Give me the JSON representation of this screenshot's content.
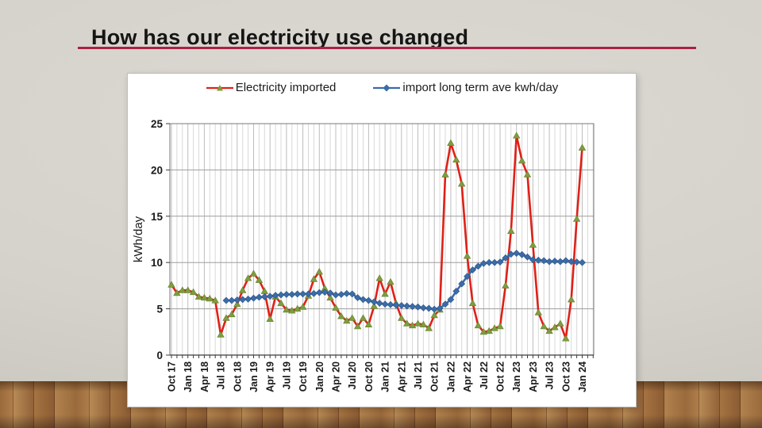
{
  "slide": {
    "title": "How has our electricity use changed",
    "accent_color": "#a82244"
  },
  "chart_data": {
    "type": "line",
    "title": "",
    "xlabel": "",
    "ylabel": "kWh/day",
    "ylim": [
      0,
      25
    ],
    "y_ticks": [
      0,
      5,
      10,
      15,
      20,
      25
    ],
    "grid": "both",
    "legend_position": "top",
    "x_start": "Oct 2017",
    "x_end": "Jan 2024",
    "x_interval": "monthly",
    "x_tick_labels": [
      "Oct 17",
      "Jan 18",
      "Apr 18",
      "Jul 18",
      "Oct 18",
      "Jan 19",
      "Apr 19",
      "Jul 19",
      "Oct 19",
      "Jan 20",
      "Apr 20",
      "Jul 20",
      "Oct 20",
      "Jan 21",
      "Apr 21",
      "Jul 21",
      "Oct 21",
      "Jan 22",
      "Apr 22",
      "Jul 22",
      "Oct 22",
      "Jan 23",
      "Apr 23",
      "Jul 23",
      "Oct 23",
      "Jan 24"
    ],
    "x_tick_label_every_n_months": 3,
    "series": [
      {
        "name": "Electricity imported",
        "color": "#e02017",
        "marker": "triangle",
        "marker_color": "#7e9d3f",
        "values": [
          7.6,
          6.7,
          7.0,
          7.0,
          6.8,
          6.3,
          6.2,
          6.1,
          5.9,
          2.2,
          4.0,
          4.4,
          5.5,
          7.0,
          8.3,
          8.8,
          8.1,
          6.9,
          3.9,
          6.3,
          5.6,
          4.9,
          4.8,
          5.0,
          5.2,
          6.4,
          8.2,
          9.0,
          7.2,
          6.2,
          5.1,
          4.2,
          3.7,
          4.0,
          3.1,
          4.0,
          3.3,
          5.3,
          8.3,
          6.6,
          7.9,
          5.6,
          4.0,
          3.4,
          3.2,
          3.4,
          3.3,
          2.9,
          4.3,
          4.9,
          19.5,
          22.9,
          21.1,
          18.5,
          10.7,
          5.6,
          3.2,
          2.5,
          2.6,
          2.9,
          3.1,
          7.5,
          13.4,
          23.7,
          21.0,
          19.5,
          11.9,
          4.6,
          3.1,
          2.6,
          3.0,
          3.4,
          1.8,
          6.0,
          14.7,
          22.4
        ]
      },
      {
        "name": "import long term ave kwh/day",
        "color": "#3a6ca8",
        "marker": "diamond",
        "marker_color": "#3a6ca8",
        "values": [
          null,
          null,
          null,
          null,
          null,
          null,
          null,
          null,
          null,
          null,
          5.9,
          5.9,
          5.95,
          6.0,
          6.05,
          6.15,
          6.25,
          6.3,
          6.35,
          6.45,
          6.5,
          6.55,
          6.55,
          6.6,
          6.6,
          6.6,
          6.65,
          6.75,
          6.8,
          6.7,
          6.5,
          6.55,
          6.65,
          6.6,
          6.2,
          6.0,
          5.9,
          5.75,
          5.6,
          5.5,
          5.45,
          5.4,
          5.35,
          5.3,
          5.25,
          5.2,
          5.1,
          5.05,
          4.95,
          5.05,
          5.5,
          6.0,
          6.9,
          7.7,
          8.5,
          9.2,
          9.6,
          9.9,
          10.0,
          10.0,
          10.05,
          10.5,
          10.9,
          11.0,
          10.85,
          10.6,
          10.3,
          10.25,
          10.2,
          10.1,
          10.15,
          10.1,
          10.2,
          10.1,
          10.05,
          10.0
        ]
      }
    ]
  }
}
